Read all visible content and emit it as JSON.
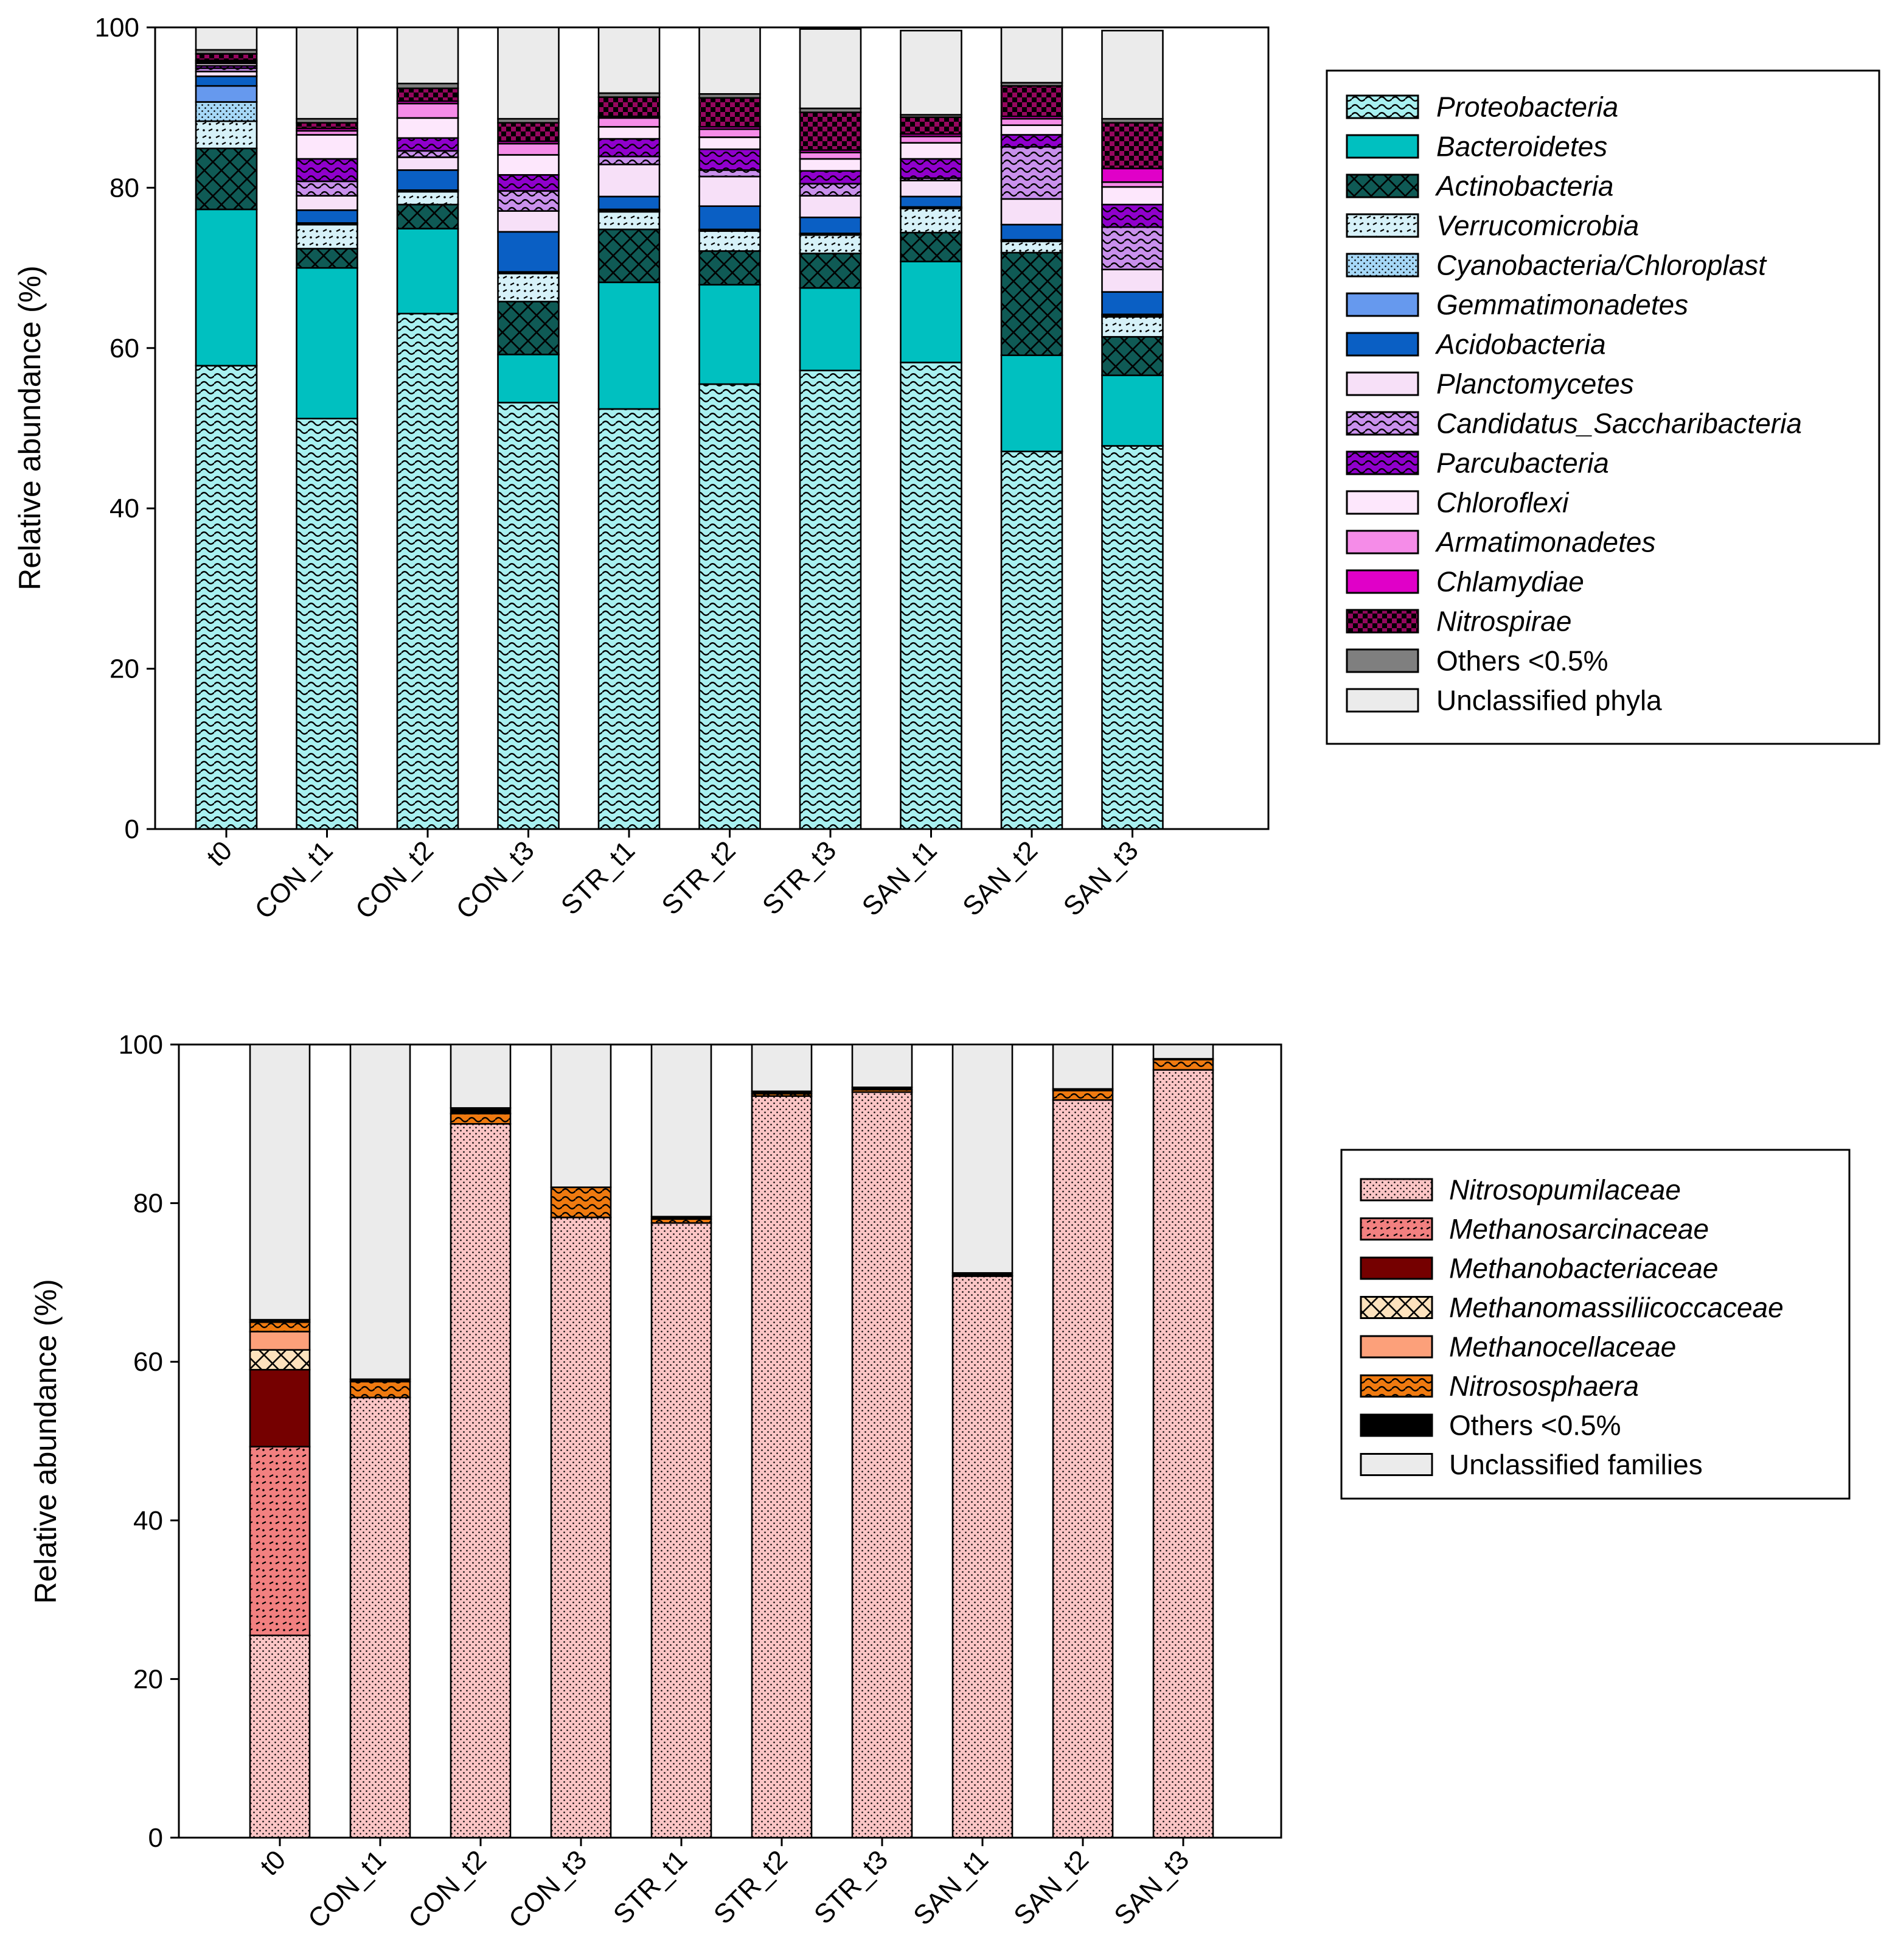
{
  "chart_data": [
    {
      "type": "bar",
      "stacked": true,
      "ylabel": "Relative abundance (%)",
      "ylim": [
        0,
        100
      ],
      "yticks": [
        0,
        20,
        40,
        60,
        80,
        100
      ],
      "categories": [
        "t0",
        "CON_t1",
        "CON_t2",
        "CON_t3",
        "STR_t1",
        "STR_t2",
        "STR_t3",
        "SAN_t1",
        "SAN_t2",
        "SAN_t3"
      ],
      "series": [
        {
          "name": "Proteobacteria",
          "italic": true,
          "color": "#a8f0f0",
          "pattern": "wave",
          "values": [
            57.8,
            51.2,
            64.3,
            53.2,
            52.4,
            55.5,
            57.2,
            58.2,
            47.1,
            47.8
          ]
        },
        {
          "name": "Bacteroidetes",
          "italic": true,
          "color": "#00c0c0",
          "pattern": "none",
          "values": [
            19.5,
            18.8,
            10.6,
            6.0,
            15.8,
            12.4,
            10.3,
            12.6,
            12.0,
            8.8
          ]
        },
        {
          "name": "Actinobacteria",
          "italic": true,
          "color": "#0f5a55",
          "pattern": "cross",
          "values": [
            7.6,
            2.4,
            3.0,
            6.6,
            6.6,
            4.2,
            4.3,
            3.6,
            12.8,
            4.8
          ]
        },
        {
          "name": "Verrucomicrobia",
          "italic": true,
          "color": "#d6f1f8",
          "pattern": "dots",
          "values": [
            3.4,
            3.0,
            1.6,
            3.5,
            2.2,
            2.5,
            2.3,
            3.0,
            1.4,
            2.5
          ]
        },
        {
          "name": "Cyanobacteria/Chloroplast",
          "italic": true,
          "color": "#a6d8f7",
          "pattern": "fine",
          "values": [
            2.4,
            0.1,
            0.1,
            0.1,
            0.2,
            0.1,
            0.1,
            0.1,
            0.1,
            0.2
          ]
        },
        {
          "name": "Gemmatimonadetes",
          "italic": true,
          "color": "#6699ee",
          "pattern": "none",
          "values": [
            2.0,
            0.1,
            0.1,
            0.1,
            0.1,
            0.1,
            0.1,
            0.1,
            0.1,
            0.1
          ]
        },
        {
          "name": "Acidobacteria",
          "italic": true,
          "color": "#0a5fc4",
          "pattern": "none",
          "values": [
            1.2,
            1.6,
            2.5,
            5.0,
            1.6,
            2.9,
            2.0,
            1.3,
            1.9,
            2.8
          ]
        },
        {
          "name": "Planctomycetes",
          "italic": true,
          "color": "#f7e0f8",
          "pattern": "none",
          "values": [
            0.6,
            1.8,
            1.6,
            2.6,
            4.0,
            3.7,
            2.7,
            2.0,
            3.2,
            2.8
          ]
        },
        {
          "name": "Candidatus_Saccharibacteria",
          "italic": true,
          "color": "#c990ec",
          "pattern": "wave",
          "values": [
            0.4,
            1.8,
            0.8,
            2.5,
            1.0,
            0.8,
            1.5,
            0.3,
            6.5,
            5.3
          ]
        },
        {
          "name": "Parcubacteria",
          "italic": true,
          "color": "#9000cc",
          "pattern": "wave",
          "values": [
            0.3,
            2.8,
            1.6,
            2.0,
            2.2,
            2.6,
            1.6,
            2.4,
            1.5,
            2.8
          ]
        },
        {
          "name": "Chloroflexi",
          "italic": true,
          "color": "#fde7fc",
          "pattern": "none",
          "values": [
            0.3,
            3.0,
            2.5,
            2.5,
            1.5,
            1.5,
            1.5,
            2.0,
            1.2,
            2.2
          ]
        },
        {
          "name": "Armatimonadetes",
          "italic": true,
          "color": "#f58ce8",
          "pattern": "none",
          "values": [
            0.2,
            0.5,
            1.8,
            1.4,
            1.1,
            1.0,
            0.8,
            0.8,
            0.8,
            0.6
          ]
        },
        {
          "name": "Chlamydiae",
          "italic": true,
          "color": "#e000c8",
          "pattern": "none",
          "values": [
            0.2,
            0.3,
            0.3,
            0.3,
            0.2,
            0.3,
            0.3,
            0.3,
            0.3,
            1.7
          ]
        },
        {
          "name": "Nitrospirae",
          "italic": true,
          "color": "#96075f",
          "pattern": "check",
          "values": [
            0.8,
            0.7,
            1.6,
            2.3,
            2.4,
            3.6,
            4.7,
            2.1,
            3.8,
            5.7
          ]
        },
        {
          "name": "Others <0.5%",
          "italic": false,
          "color": "#7f7f7f",
          "pattern": "none",
          "values": [
            0.5,
            0.5,
            0.6,
            0.5,
            0.5,
            0.5,
            0.5,
            0.3,
            0.4,
            0.5
          ]
        },
        {
          "name": "Unclassified phyla",
          "italic": false,
          "color": "#ebebeb",
          "pattern": "none",
          "values": [
            2.8,
            11.4,
            9.0,
            11.5,
            9.0,
            8.3,
            9.9,
            10.5,
            6.9,
            11.0
          ]
        }
      ]
    },
    {
      "type": "bar",
      "stacked": true,
      "ylabel": "Relative abundance (%)",
      "ylim": [
        0,
        100
      ],
      "yticks": [
        0,
        20,
        40,
        60,
        80,
        100
      ],
      "categories": [
        "t0",
        "CON_t1",
        "CON_t2",
        "CON_t3",
        "STR_t1",
        "STR_t2",
        "STR_t3",
        "SAN_t1",
        "SAN_t2",
        "SAN_t3"
      ],
      "series": [
        {
          "name": "Nitrosopumilaceae",
          "italic": true,
          "color": "#fbc5c5",
          "pattern": "fine",
          "values": [
            25.5,
            55.5,
            90.0,
            78.2,
            77.5,
            93.5,
            94.0,
            70.8,
            93.0,
            96.8
          ]
        },
        {
          "name": "Methanosarcinaceae",
          "italic": true,
          "color": "#f28080",
          "pattern": "dots",
          "values": [
            23.8,
            0,
            0,
            0,
            0,
            0,
            0,
            0,
            0,
            0
          ]
        },
        {
          "name": "Methanobacteriaceae",
          "italic": true,
          "color": "#750000",
          "pattern": "none",
          "values": [
            9.7,
            0,
            0,
            0,
            0,
            0,
            0,
            0,
            0,
            0
          ]
        },
        {
          "name": "Methanomassiliicoccaceae",
          "italic": true,
          "color": "#fde2bd",
          "pattern": "cross",
          "values": [
            2.5,
            0,
            0,
            0,
            0,
            0,
            0,
            0,
            0,
            0
          ]
        },
        {
          "name": "Methanocellaceae",
          "italic": true,
          "color": "#fca07a",
          "pattern": "none",
          "values": [
            2.3,
            0,
            0,
            0,
            0,
            0,
            0,
            0,
            0,
            0
          ]
        },
        {
          "name": "Nitrososphaera",
          "italic": true,
          "color": "#ef7a10",
          "pattern": "wave",
          "values": [
            1.2,
            2.0,
            1.3,
            3.8,
            0.5,
            0.3,
            0.3,
            0.1,
            1.2,
            1.3
          ]
        },
        {
          "name": "Others <0.5%",
          "italic": false,
          "color": "#000000",
          "pattern": "none",
          "values": [
            0.3,
            0.3,
            0.7,
            0,
            0.3,
            0.3,
            0.3,
            0.3,
            0.2,
            0.1
          ]
        },
        {
          "name": "Unclassified families",
          "italic": false,
          "color": "#ebebeb",
          "pattern": "none",
          "values": [
            34.7,
            42.2,
            8.0,
            18.0,
            21.7,
            5.9,
            5.4,
            28.8,
            5.6,
            1.8
          ]
        }
      ]
    }
  ]
}
